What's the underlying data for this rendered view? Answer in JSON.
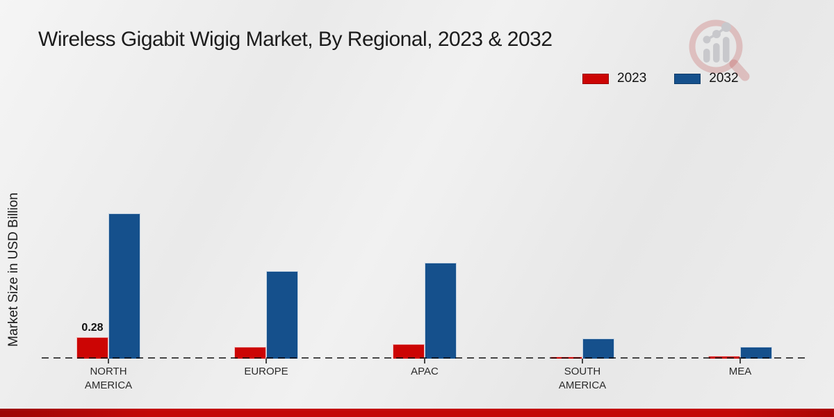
{
  "title": "Wireless Gigabit Wigig Market, By Regional, 2023 & 2032",
  "y_axis_label": "Market Size in USD Billion",
  "legend": {
    "position": "top-right",
    "items": [
      {
        "label": "2023",
        "color": "#cc0504"
      },
      {
        "label": "2032",
        "color": "#15508c"
      }
    ]
  },
  "colors": {
    "series_2023": "#cc0504",
    "series_2032": "#15508c",
    "footer_bar": "#c40808",
    "background": "#ebebeb",
    "baseline_dash": "#4c4c4c"
  },
  "watermark": {
    "name": "market-research-logo",
    "description": "magnifying glass with rising bar chart"
  },
  "chart_data": {
    "type": "bar",
    "title": "Wireless Gigabit Wigig Market, By Regional, 2023 & 2032",
    "xlabel": "",
    "ylabel": "Market Size in USD Billion",
    "categories": [
      "NORTH\nAMERICA",
      "EUROPE",
      "APAC",
      "SOUTH\nAMERICA",
      "MEA"
    ],
    "series": [
      {
        "name": "2023",
        "color": "#cc0504",
        "values": [
          0.28,
          0.15,
          0.19,
          0.03,
          0.04
        ]
      },
      {
        "name": "2032",
        "color": "#15508c",
        "values": [
          1.89,
          1.14,
          1.25,
          0.26,
          0.15
        ]
      }
    ],
    "data_labels": [
      {
        "series_index": 0,
        "category_index": 0,
        "text": "0.28"
      }
    ],
    "ylim": [
      0,
      2.0
    ],
    "grid": false,
    "y_axis_ticks_visible": false,
    "baseline_style": "dashed",
    "legend_position": "top-right"
  }
}
